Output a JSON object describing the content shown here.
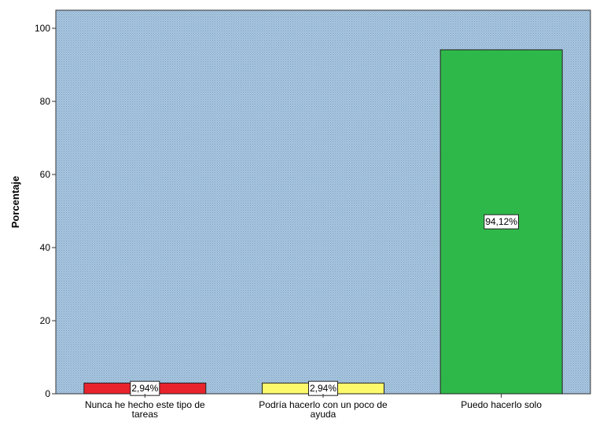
{
  "chart_data": {
    "type": "bar",
    "title": "",
    "xlabel": "",
    "ylabel": "Porcentaje",
    "ylim": [
      0,
      100
    ],
    "yticks": [
      "0",
      "20",
      "40",
      "60",
      "80",
      "100"
    ],
    "categories": [
      [
        "Nunca he hecho este tipo de",
        "tareas"
      ],
      [
        "Podría hacerlo con un poco de",
        "ayuda"
      ],
      [
        "Puedo hacerlo solo"
      ]
    ],
    "values": [
      2.94,
      2.94,
      94.12
    ],
    "data_labels": [
      "2,94%",
      "2,94%",
      "94,12%"
    ],
    "colors": [
      "#e8232c",
      "#fcf96b",
      "#2fb84a"
    ],
    "grid": false,
    "plot_background": "#a7c6e0"
  }
}
